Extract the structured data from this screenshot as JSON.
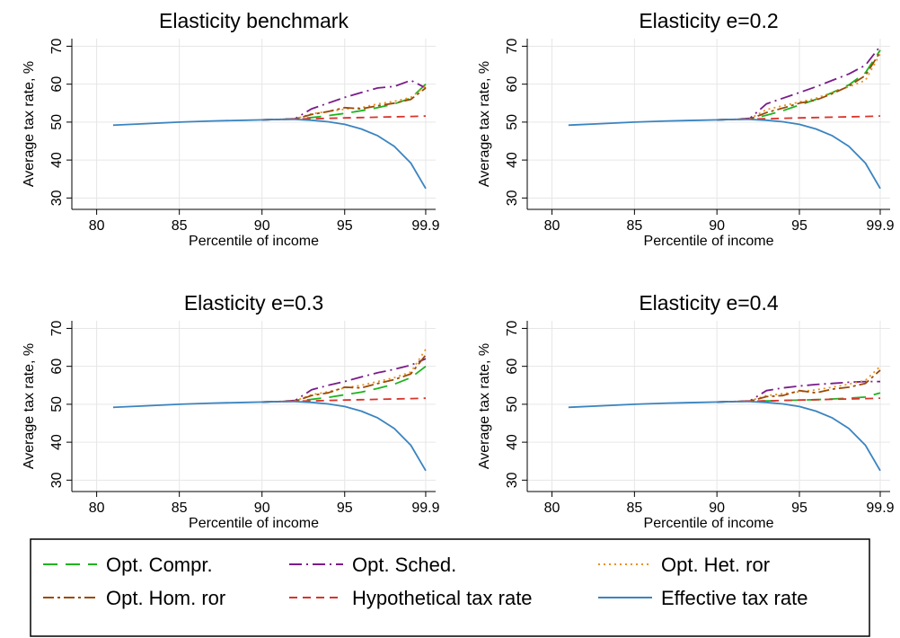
{
  "colors": {
    "opt_compr": "#1fb31f",
    "opt_sched": "#7a1c8a",
    "opt_het": "#e8921e",
    "opt_hom": "#9a4a0a",
    "hypothetical": "#d9342b",
    "effective": "#3a84c0",
    "grid": "#e6e6e6"
  },
  "chart_data": [
    {
      "type": "line",
      "title": "Elasticity benchmark",
      "xlabel": "Percentile of income",
      "ylabel": "Average tax rate, %",
      "xlim": [
        78.5,
        100.5
      ],
      "ylim": [
        27,
        72
      ],
      "xticks": [
        80,
        85,
        90,
        95,
        99.9
      ],
      "xtick_labels": [
        "80",
        "85",
        "90",
        "95",
        "99.9"
      ],
      "yticks": [
        30,
        40,
        50,
        60,
        70
      ],
      "ytick_labels": [
        "30",
        "40",
        "50",
        "60",
        "70"
      ],
      "grid": true,
      "series": [
        {
          "key": "opt_compr",
          "x": [
            90,
            91,
            92,
            93,
            94,
            95,
            96,
            97,
            98,
            99,
            99.9
          ],
          "y": [
            50.6,
            50.7,
            50.8,
            51.2,
            51.7,
            52.3,
            53.0,
            53.8,
            54.8,
            56.3,
            60.0
          ]
        },
        {
          "key": "opt_sched",
          "x": [
            90,
            91,
            92,
            93,
            94,
            95,
            96,
            97,
            98,
            99,
            99.9
          ],
          "y": [
            50.6,
            50.7,
            50.9,
            53.5,
            55.0,
            56.5,
            57.8,
            59.0,
            59.4,
            61.0,
            59.0
          ]
        },
        {
          "key": "opt_het",
          "x": [
            90,
            91,
            92,
            93,
            94,
            95,
            96,
            97,
            98,
            99,
            99.9
          ],
          "y": [
            50.6,
            50.7,
            50.8,
            52.2,
            52.8,
            53.4,
            53.8,
            54.8,
            55.5,
            56.5,
            59.5
          ]
        },
        {
          "key": "opt_hom",
          "x": [
            90,
            91,
            92,
            93,
            94,
            95,
            96,
            97,
            98,
            99,
            99.9
          ],
          "y": [
            50.6,
            50.7,
            50.8,
            52.0,
            52.8,
            53.8,
            53.5,
            54.3,
            55.0,
            56.0,
            59.0
          ]
        },
        {
          "key": "hypothetical",
          "x": [
            90,
            91,
            92,
            93,
            94,
            95,
            96,
            97,
            98,
            99,
            99.9
          ],
          "y": [
            50.6,
            50.7,
            50.8,
            50.9,
            51.0,
            51.1,
            51.2,
            51.3,
            51.4,
            51.5,
            51.6
          ]
        },
        {
          "key": "effective",
          "x": [
            81,
            83,
            85,
            87,
            89,
            90,
            91,
            92,
            93,
            94,
            95,
            96,
            97,
            98,
            99,
            99.9
          ],
          "y": [
            49.2,
            49.6,
            50.0,
            50.3,
            50.5,
            50.6,
            50.7,
            50.7,
            50.5,
            50.1,
            49.4,
            48.2,
            46.4,
            43.6,
            39.2,
            32.5
          ]
        }
      ]
    },
    {
      "type": "line",
      "title": "Elasticity e=0.2",
      "xlabel": "Percentile of income",
      "ylabel": "Average tax rate, %",
      "xlim": [
        78.5,
        100.5
      ],
      "ylim": [
        27,
        72
      ],
      "xticks": [
        80,
        85,
        90,
        95,
        99.9
      ],
      "xtick_labels": [
        "80",
        "85",
        "90",
        "95",
        "99.9"
      ],
      "yticks": [
        30,
        40,
        50,
        60,
        70
      ],
      "ytick_labels": [
        "30",
        "40",
        "50",
        "60",
        "70"
      ],
      "grid": true,
      "series": [
        {
          "key": "opt_compr",
          "x": [
            90,
            91,
            92,
            93,
            94,
            95,
            96,
            97,
            98,
            99,
            99.9
          ],
          "y": [
            50.6,
            50.7,
            50.8,
            51.8,
            53.0,
            54.5,
            56.0,
            57.8,
            59.8,
            63.0,
            69.0
          ]
        },
        {
          "key": "opt_sched",
          "x": [
            90,
            91,
            92,
            93,
            94,
            95,
            96,
            97,
            98,
            99,
            99.9
          ],
          "y": [
            50.6,
            50.7,
            51.0,
            54.8,
            56.3,
            57.8,
            59.3,
            61.0,
            62.7,
            65.0,
            70.0
          ]
        },
        {
          "key": "opt_het",
          "x": [
            90,
            91,
            92,
            93,
            94,
            95,
            96,
            97,
            98,
            99,
            99.9
          ],
          "y": [
            50.6,
            50.7,
            50.9,
            53.3,
            54.3,
            55.3,
            56.3,
            57.8,
            59.3,
            61.0,
            68.0
          ]
        },
        {
          "key": "opt_hom",
          "x": [
            90,
            91,
            92,
            93,
            94,
            95,
            96,
            97,
            98,
            99,
            99.9
          ],
          "y": [
            50.6,
            50.7,
            50.8,
            52.5,
            53.7,
            55.0,
            55.8,
            57.5,
            59.5,
            62.3,
            68.5
          ]
        },
        {
          "key": "hypothetical",
          "x": [
            90,
            91,
            92,
            93,
            94,
            95,
            96,
            97,
            98,
            99,
            99.9
          ],
          "y": [
            50.6,
            50.7,
            50.8,
            50.9,
            51.0,
            51.1,
            51.2,
            51.3,
            51.4,
            51.5,
            51.6
          ]
        },
        {
          "key": "effective",
          "x": [
            81,
            83,
            85,
            87,
            89,
            90,
            91,
            92,
            93,
            94,
            95,
            96,
            97,
            98,
            99,
            99.9
          ],
          "y": [
            49.2,
            49.6,
            50.0,
            50.3,
            50.5,
            50.6,
            50.7,
            50.7,
            50.5,
            50.1,
            49.4,
            48.2,
            46.4,
            43.6,
            39.2,
            32.5
          ]
        }
      ]
    },
    {
      "type": "line",
      "title": "Elasticity e=0.3",
      "xlabel": "Percentile of income",
      "ylabel": "Average tax rate, %",
      "xlim": [
        78.5,
        100.5
      ],
      "ylim": [
        27,
        72
      ],
      "xticks": [
        80,
        85,
        90,
        95,
        99.9
      ],
      "xtick_labels": [
        "80",
        "85",
        "90",
        "95",
        "99.9"
      ],
      "yticks": [
        30,
        40,
        50,
        60,
        70
      ],
      "ytick_labels": [
        "30",
        "40",
        "50",
        "60",
        "70"
      ],
      "grid": true,
      "series": [
        {
          "key": "opt_compr",
          "x": [
            90,
            91,
            92,
            93,
            94,
            95,
            96,
            97,
            98,
            99,
            99.9
          ],
          "y": [
            50.6,
            50.7,
            50.8,
            51.3,
            51.8,
            52.5,
            53.2,
            54.2,
            55.3,
            57.0,
            60.0
          ]
        },
        {
          "key": "opt_sched",
          "x": [
            90,
            91,
            92,
            93,
            94,
            95,
            96,
            97,
            98,
            99,
            99.9
          ],
          "y": [
            50.6,
            50.7,
            51.0,
            53.8,
            55.0,
            56.0,
            57.2,
            58.3,
            59.2,
            60.3,
            62.0
          ]
        },
        {
          "key": "opt_het",
          "x": [
            90,
            91,
            92,
            93,
            94,
            95,
            96,
            97,
            98,
            99,
            99.9
          ],
          "y": [
            50.6,
            50.7,
            50.9,
            52.5,
            53.3,
            54.3,
            55.0,
            56.0,
            57.0,
            58.5,
            64.5
          ]
        },
        {
          "key": "opt_hom",
          "x": [
            90,
            91,
            92,
            93,
            94,
            95,
            96,
            97,
            98,
            99,
            99.9
          ],
          "y": [
            50.6,
            50.7,
            50.8,
            52.3,
            53.0,
            54.5,
            54.3,
            55.5,
            56.5,
            58.0,
            63.0
          ]
        },
        {
          "key": "hypothetical",
          "x": [
            90,
            91,
            92,
            93,
            94,
            95,
            96,
            97,
            98,
            99,
            99.9
          ],
          "y": [
            50.6,
            50.7,
            50.8,
            50.9,
            51.0,
            51.1,
            51.2,
            51.3,
            51.4,
            51.5,
            51.6
          ]
        },
        {
          "key": "effective",
          "x": [
            81,
            83,
            85,
            87,
            89,
            90,
            91,
            92,
            93,
            94,
            95,
            96,
            97,
            98,
            99,
            99.9
          ],
          "y": [
            49.2,
            49.6,
            50.0,
            50.3,
            50.5,
            50.6,
            50.7,
            50.7,
            50.5,
            50.1,
            49.4,
            48.2,
            46.4,
            43.6,
            39.2,
            32.5
          ]
        }
      ]
    },
    {
      "type": "line",
      "title": "Elasticity e=0.4",
      "xlabel": "Percentile of income",
      "ylabel": "Average tax rate, %",
      "xlim": [
        78.5,
        100.5
      ],
      "ylim": [
        27,
        72
      ],
      "xticks": [
        80,
        85,
        90,
        95,
        99.9
      ],
      "xtick_labels": [
        "80",
        "85",
        "90",
        "95",
        "99.9"
      ],
      "yticks": [
        30,
        40,
        50,
        60,
        70
      ],
      "ytick_labels": [
        "30",
        "40",
        "50",
        "60",
        "70"
      ],
      "grid": true,
      "series": [
        {
          "key": "opt_compr",
          "x": [
            90,
            91,
            92,
            93,
            94,
            95,
            96,
            97,
            98,
            99,
            99.9
          ],
          "y": [
            50.6,
            50.7,
            50.8,
            50.9,
            51.0,
            51.1,
            51.2,
            51.4,
            51.6,
            51.9,
            53.0
          ]
        },
        {
          "key": "opt_sched",
          "x": [
            90,
            91,
            92,
            93,
            94,
            95,
            96,
            97,
            98,
            99,
            99.9
          ],
          "y": [
            50.6,
            50.7,
            50.9,
            53.6,
            54.3,
            54.8,
            55.2,
            55.5,
            55.8,
            56.0,
            56.0
          ]
        },
        {
          "key": "opt_het",
          "x": [
            90,
            91,
            92,
            93,
            94,
            95,
            96,
            97,
            98,
            99,
            99.9
          ],
          "y": [
            50.6,
            50.7,
            50.9,
            52.3,
            52.8,
            53.3,
            53.8,
            54.5,
            55.3,
            56.3,
            60.0
          ]
        },
        {
          "key": "opt_hom",
          "x": [
            90,
            91,
            92,
            93,
            94,
            95,
            96,
            97,
            98,
            99,
            99.9
          ],
          "y": [
            50.6,
            50.7,
            50.8,
            52.0,
            52.3,
            53.6,
            53.0,
            54.0,
            54.5,
            55.5,
            59.0
          ]
        },
        {
          "key": "hypothetical",
          "x": [
            90,
            91,
            92,
            93,
            94,
            95,
            96,
            97,
            98,
            99,
            99.9
          ],
          "y": [
            50.6,
            50.7,
            50.8,
            50.9,
            51.0,
            51.1,
            51.2,
            51.3,
            51.4,
            51.5,
            51.6
          ]
        },
        {
          "key": "effective",
          "x": [
            81,
            83,
            85,
            87,
            89,
            90,
            91,
            92,
            93,
            94,
            95,
            96,
            97,
            98,
            99,
            99.9
          ],
          "y": [
            49.2,
            49.6,
            50.0,
            50.3,
            50.5,
            50.6,
            50.7,
            50.7,
            50.5,
            50.1,
            49.4,
            48.2,
            46.4,
            43.6,
            39.2,
            32.5
          ]
        }
      ]
    }
  ],
  "legend": {
    "entries": [
      {
        "key": "opt_compr",
        "label": "Opt. Compr.",
        "style": "dash"
      },
      {
        "key": "opt_sched",
        "label": "Opt. Sched.",
        "style": "dashdot"
      },
      {
        "key": "opt_het",
        "label": "Opt. Het. ror",
        "style": "dot"
      },
      {
        "key": "opt_hom",
        "label": "Opt. Hom. ror",
        "style": "longdashdot"
      },
      {
        "key": "hypothetical",
        "label": "Hypothetical tax rate",
        "style": "shortdash"
      },
      {
        "key": "effective",
        "label": "Effective tax rate",
        "style": "solid"
      }
    ]
  }
}
